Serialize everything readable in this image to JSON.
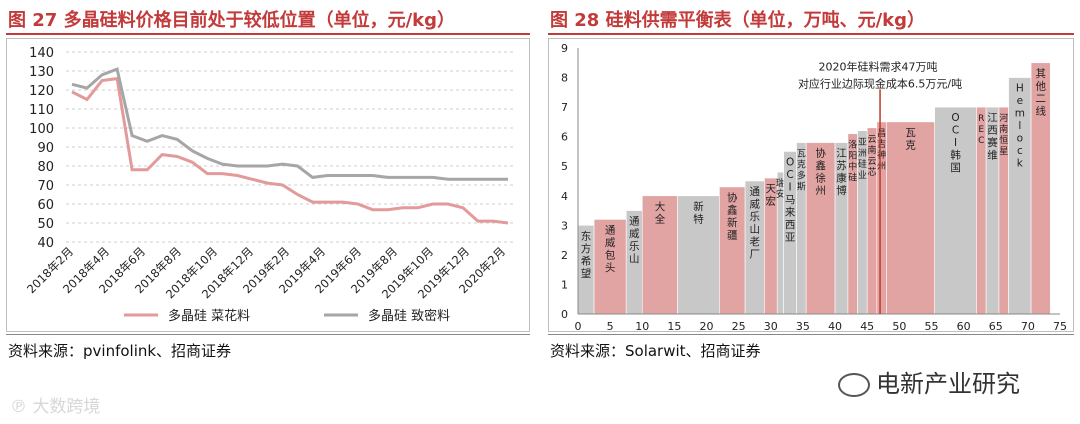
{
  "left": {
    "title": "图 27  多晶硅料价格目前处于较低位置（单位，元/kg）",
    "source": "资料来源：pvinfolink、招商证券",
    "chart_data": {
      "type": "line",
      "ylim": [
        40,
        140
      ],
      "yticks": [
        "40",
        "50",
        "60",
        "70",
        "80",
        "90",
        "100",
        "110",
        "120",
        "130",
        "140"
      ],
      "xticks": [
        "2018年2月",
        "2018年4月",
        "2018年6月",
        "2018年8月",
        "2018年10月",
        "2018年12月",
        "2019年2月",
        "2019年4月",
        "2019年6月",
        "2019年8月",
        "2019年10月",
        "2019年12月",
        "2020年2月"
      ],
      "series": [
        {
          "name": "多晶硅  菜花料",
          "color": "#e29a9a",
          "values": [
            119,
            115,
            125,
            126,
            78,
            78,
            86,
            85,
            82,
            76,
            76,
            75,
            73,
            71,
            70,
            65,
            61,
            61,
            61,
            60,
            57,
            57,
            58,
            58,
            60,
            60,
            58,
            51,
            51,
            50
          ]
        },
        {
          "name": "多晶硅  致密料",
          "color": "#a6a6a6",
          "values": [
            123,
            121,
            128,
            131,
            96,
            93,
            96,
            94,
            88,
            84,
            81,
            80,
            80,
            80,
            81,
            80,
            74,
            75,
            75,
            75,
            75,
            74,
            74,
            74,
            74,
            73,
            73,
            73,
            73,
            73
          ]
        }
      ]
    }
  },
  "right": {
    "title": "图 28 硅料供需平衡表（单位，万吨、元/kg）",
    "source": "资料来源：Solarwit、招商证券",
    "chart_data": {
      "type": "bar",
      "xlim": [
        0,
        75
      ],
      "ylim": [
        0,
        9
      ],
      "xticks": [
        "0",
        "5",
        "10",
        "15",
        "20",
        "25",
        "30",
        "35",
        "40",
        "45",
        "50",
        "55",
        "60",
        "65",
        "70",
        "75"
      ],
      "yticks": [
        "0",
        "1",
        "2",
        "3",
        "4",
        "5",
        "6",
        "7",
        "8",
        "9"
      ],
      "annotation": {
        "line1": "2020年硅料需求47万吨",
        "line2": "对应行业边际现金成本6.5万元/吨",
        "x": 47
      },
      "bars": [
        {
          "label": "东方希望",
          "start": 0,
          "end": 2.5,
          "cost": 3.0,
          "color": "#c8c8c8"
        },
        {
          "label": "通威包头",
          "start": 2.5,
          "end": 7.5,
          "cost": 3.2,
          "color": "#e2a3a3"
        },
        {
          "label": "通威乐山",
          "start": 7.5,
          "end": 10,
          "cost": 3.5,
          "color": "#c8c8c8"
        },
        {
          "label": "大全",
          "start": 10,
          "end": 15.5,
          "cost": 4.0,
          "color": "#e2a3a3"
        },
        {
          "label": "新特",
          "start": 15.5,
          "end": 22,
          "cost": 4.0,
          "color": "#c8c8c8"
        },
        {
          "label": "协鑫新疆",
          "start": 22,
          "end": 26,
          "cost": 4.3,
          "color": "#e2a3a3"
        },
        {
          "label": "通威乐山老厂",
          "start": 26,
          "end": 29,
          "cost": 4.5,
          "color": "#c8c8c8"
        },
        {
          "label": "天宏",
          "start": 29,
          "end": 31,
          "cost": 4.6,
          "color": "#e2a3a3"
        },
        {
          "label": "瑞安",
          "start": 31,
          "end": 32,
          "cost": 4.8,
          "color": "#c8c8c8"
        },
        {
          "label": "OCI马来西亚",
          "start": 32,
          "end": 34,
          "cost": 5.5,
          "color": "#c8c8c8"
        },
        {
          "label": "瓦克多斯",
          "start": 34,
          "end": 35.5,
          "cost": 5.8,
          "color": "#c8c8c8"
        },
        {
          "label": "协鑫徐州",
          "start": 35.5,
          "end": 40,
          "cost": 5.8,
          "color": "#e2a3a3"
        },
        {
          "label": "江苏康博",
          "start": 40,
          "end": 42,
          "cost": 5.8,
          "color": "#c8c8c8"
        },
        {
          "label": "洛阳中硅",
          "start": 42,
          "end": 43.5,
          "cost": 6.1,
          "color": "#e2a3a3"
        },
        {
          "label": "亚洲硅业",
          "start": 43.5,
          "end": 45,
          "cost": 6.2,
          "color": "#c8c8c8"
        },
        {
          "label": "云南云芯",
          "start": 45,
          "end": 46.5,
          "cost": 6.3,
          "color": "#e2a3a3"
        },
        {
          "label": "昌吉神州",
          "start": 46.5,
          "end": 48,
          "cost": 6.5,
          "color": "#e2a3a3"
        },
        {
          "label": "瓦克",
          "start": 48,
          "end": 55.5,
          "cost": 6.5,
          "color": "#e2a3a3"
        },
        {
          "label": "OCI韩国",
          "start": 55.5,
          "end": 62,
          "cost": 7.0,
          "color": "#c8c8c8"
        },
        {
          "label": "REC",
          "start": 62,
          "end": 63.5,
          "cost": 7.0,
          "color": "#e2a3a3"
        },
        {
          "label": "江西赛维",
          "start": 63.5,
          "end": 65.5,
          "cost": 7.0,
          "color": "#c8c8c8"
        },
        {
          "label": "河南恒星",
          "start": 65.5,
          "end": 67,
          "cost": 7.0,
          "color": "#e2a3a3"
        },
        {
          "label": "Hemlock",
          "start": 67,
          "end": 70.5,
          "cost": 8.0,
          "color": "#c8c8c8"
        },
        {
          "label": "其他二线",
          "start": 70.5,
          "end": 73.5,
          "cost": 8.5,
          "color": "#e2a3a3"
        }
      ]
    }
  },
  "watermark_left": "大数跨境",
  "watermark_right": "电新产业研究"
}
